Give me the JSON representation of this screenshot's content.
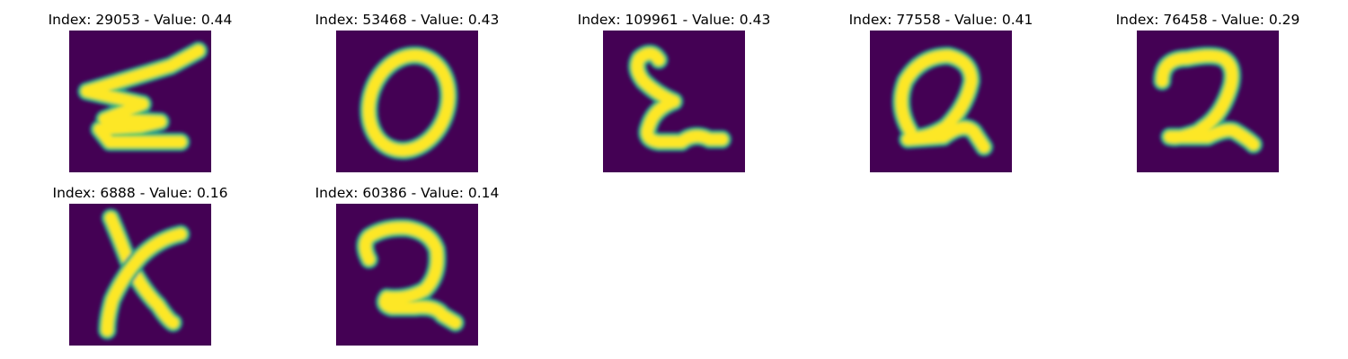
{
  "colors": {
    "background": "#440154",
    "stroke_outer": "#21918c",
    "stroke_mid": "#5ec962",
    "stroke_core": "#fde725"
  },
  "figure": {
    "images": [
      {
        "title": "Index: 29053 - Value: 0.44",
        "index": 29053,
        "value": 0.44
      },
      {
        "title": "Index: 53468 - Value: 0.43",
        "index": 53468,
        "value": 0.43
      },
      {
        "title": "Index: 109961 - Value: 0.43",
        "index": 109961,
        "value": 0.43
      },
      {
        "title": "Index: 77558 - Value: 0.41",
        "index": 77558,
        "value": 0.41
      },
      {
        "title": "Index: 76458 - Value: 0.29",
        "index": 76458,
        "value": 0.29
      },
      {
        "title": "Index: 6888 - Value: 0.16",
        "index": 6888,
        "value": 0.16
      },
      {
        "title": "Index: 60386 - Value: 0.14",
        "index": 60386,
        "value": 0.14
      }
    ]
  }
}
